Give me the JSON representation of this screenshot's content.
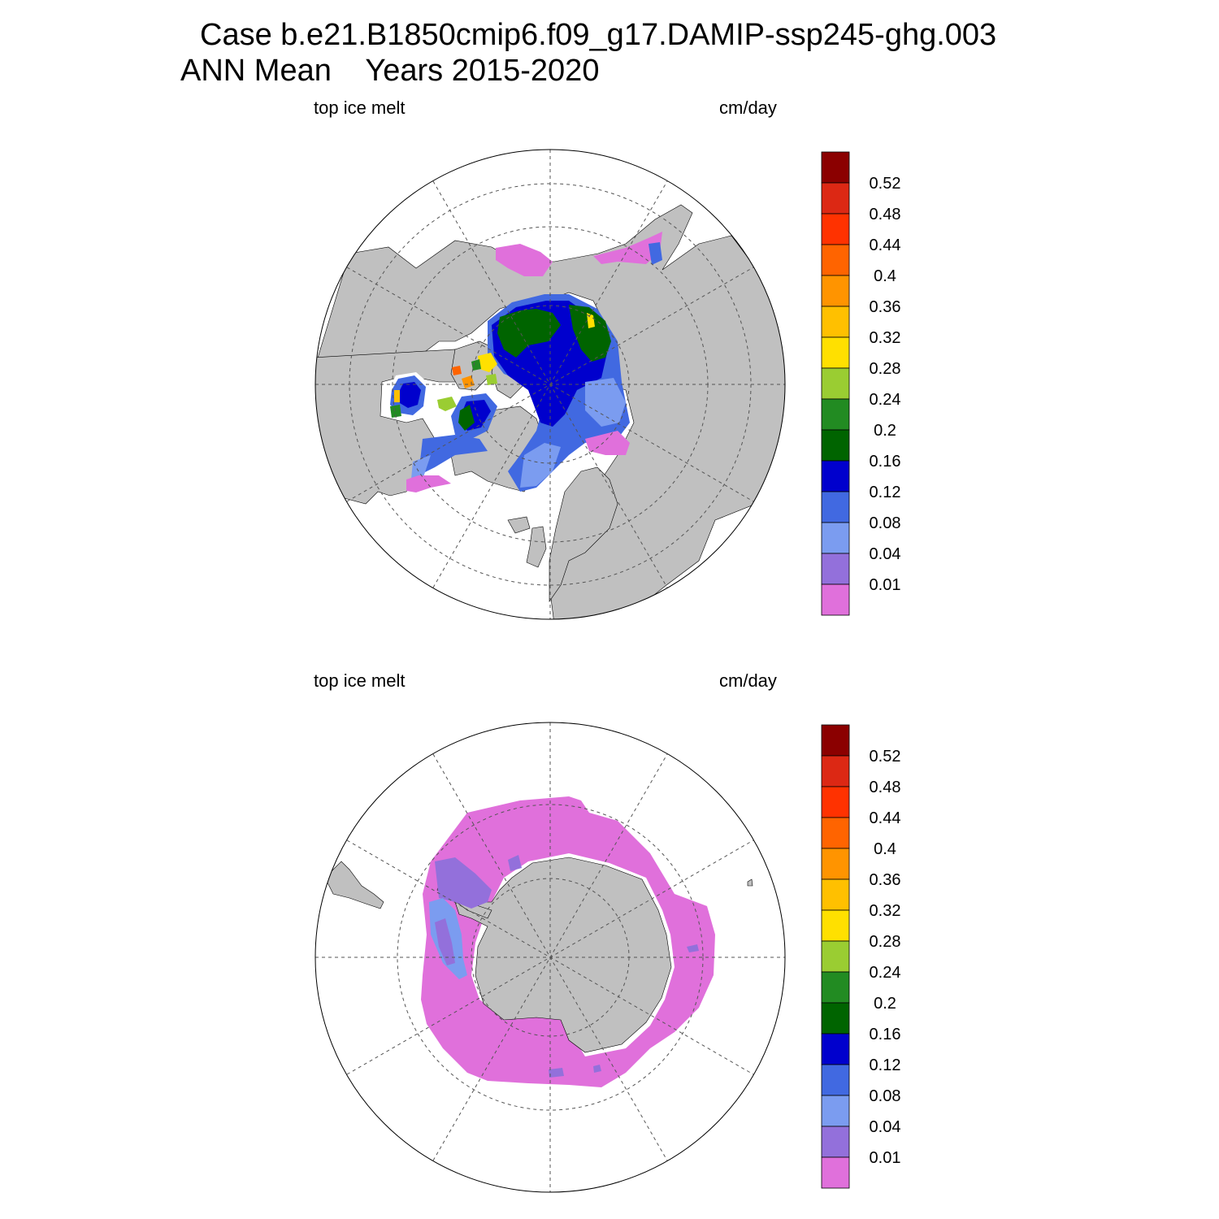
{
  "title": {
    "line1": "Case b.e21.B1850cmip6.f09_g17.DAMIP-ssp245-ghg.003",
    "line2_left": "ANN Mean",
    "line2_right": "Years 2015-2020"
  },
  "colors": {
    "land": "#c0c0c0",
    "ocean": "#ffffff",
    "grid": "#555555"
  },
  "chart_data": [
    {
      "type": "heatmap",
      "projection": "north polar stereographic",
      "hemisphere": "Northern Hemisphere",
      "variable_label": "top ice melt",
      "units_label": "cm/day",
      "legend_position": "right",
      "colorbar": {
        "boundaries": [
          "0.01",
          "0.04",
          "0.08",
          "0.12",
          "0.16",
          "0.2",
          "0.24",
          "0.28",
          "0.32",
          "0.36",
          "0.4",
          "0.44",
          "0.48",
          "0.52"
        ],
        "colors": [
          "#e070db",
          "#9370db",
          "#7b9cf0",
          "#4169e1",
          "#0000cd",
          "#006400",
          "#228b22",
          "#9acd32",
          "#ffe000",
          "#ffc000",
          "#ff9400",
          "#ff6400",
          "#ff3200",
          "#dc2814",
          "#8b0000"
        ]
      },
      "field_summary": {
        "central_arctic": 0.14,
        "beaufort_east_siberian": 0.18,
        "canadian_archipelago": 0.26,
        "hudson_bay": 0.14,
        "baffin_labrador_margin": 0.06,
        "barents_greenland_margin": 0.06,
        "bering_okhotsk": 0.005
      }
    },
    {
      "type": "heatmap",
      "projection": "south polar stereographic",
      "hemisphere": "Southern Hemisphere",
      "variable_label": "top ice melt",
      "units_label": "cm/day",
      "legend_position": "right",
      "colorbar": {
        "boundaries": [
          "0.01",
          "0.04",
          "0.08",
          "0.12",
          "0.16",
          "0.2",
          "0.24",
          "0.28",
          "0.32",
          "0.36",
          "0.4",
          "0.44",
          "0.48",
          "0.52"
        ],
        "colors": [
          "#e070db",
          "#9370db",
          "#7b9cf0",
          "#4169e1",
          "#0000cd",
          "#006400",
          "#228b22",
          "#9acd32",
          "#ffe000",
          "#ffc000",
          "#ff9400",
          "#ff6400",
          "#ff3200",
          "#dc2814",
          "#8b0000"
        ]
      },
      "field_summary": {
        "circumpolar_ice_zone": 0.005,
        "weddell_sea": 0.02,
        "antarctic_peninsula_west": 0.06,
        "ross_sea_patches": 0.06
      }
    }
  ]
}
